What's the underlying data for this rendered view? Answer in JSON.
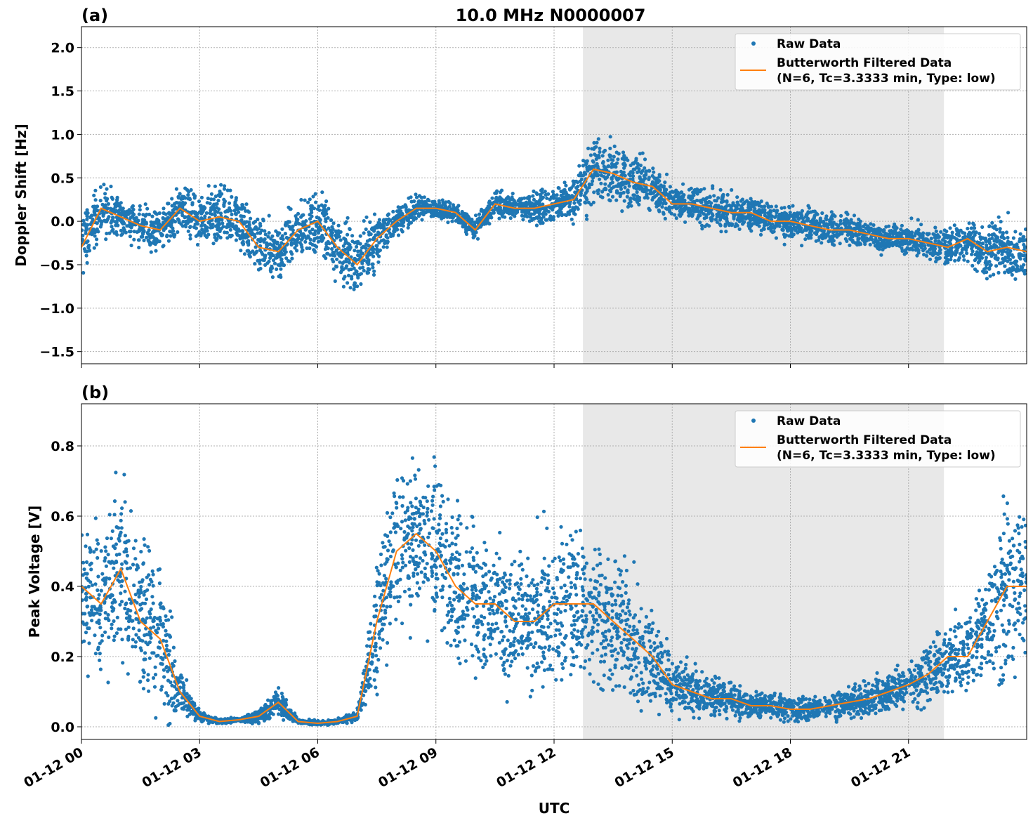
{
  "chart_data": [
    {
      "type": "scatter+line",
      "panel_label": "(a)",
      "title": "10.0 MHz N0000007",
      "ylabel": "Doppler Shift [Hz]",
      "xlabel": "",
      "ylim": [
        -1.64,
        2.24
      ],
      "yticks": [
        -1.5,
        -1.0,
        -0.5,
        0.0,
        0.5,
        1.0,
        1.5,
        2.0
      ],
      "grid": true,
      "legend": {
        "placement": "top-right",
        "entries": [
          "Raw Data",
          "Butterworth Filtered Data",
          "(N=6, Tc=3.3333 min, Type: low)"
        ]
      },
      "shaded_interval": [
        "12:44",
        "21:54"
      ],
      "times": [
        "00:00",
        "00:30",
        "01:00",
        "01:30",
        "02:00",
        "02:30",
        "03:00",
        "03:30",
        "04:00",
        "04:30",
        "05:00",
        "05:30",
        "06:00",
        "06:30",
        "07:00",
        "07:30",
        "08:00",
        "08:30",
        "09:00",
        "09:30",
        "10:00",
        "10:30",
        "11:00",
        "11:30",
        "12:00",
        "12:30",
        "13:00",
        "13:30",
        "14:00",
        "14:30",
        "15:00",
        "15:30",
        "16:00",
        "16:30",
        "17:00",
        "17:30",
        "18:00",
        "18:30",
        "19:00",
        "19:30",
        "20:00",
        "20:30",
        "21:00",
        "21:30",
        "22:00",
        "22:30",
        "23:00",
        "23:30",
        "24:00"
      ],
      "series": [
        {
          "name": "Butterworth Filtered Data",
          "color": "#ff7f0e",
          "values": [
            -0.3,
            0.15,
            0.05,
            -0.05,
            -0.1,
            0.15,
            0.0,
            0.05,
            0.0,
            -0.3,
            -0.35,
            -0.1,
            0.0,
            -0.3,
            -0.5,
            -0.2,
            0.0,
            0.15,
            0.15,
            0.1,
            -0.1,
            0.2,
            0.15,
            0.15,
            0.2,
            0.25,
            0.6,
            0.55,
            0.45,
            0.4,
            0.2,
            0.2,
            0.15,
            0.1,
            0.1,
            0.0,
            0.0,
            -0.05,
            -0.1,
            -0.1,
            -0.15,
            -0.2,
            -0.2,
            -0.25,
            -0.3,
            -0.2,
            -0.35,
            -0.3,
            -0.35
          ]
        },
        {
          "name": "Raw Data",
          "color": "#1f77b4",
          "spread": [
            0.45,
            0.45,
            0.3,
            0.35,
            0.3,
            0.35,
            0.4,
            0.5,
            0.5,
            0.45,
            0.45,
            0.45,
            0.55,
            0.6,
            0.6,
            0.4,
            0.25,
            0.2,
            0.15,
            0.15,
            0.2,
            0.2,
            0.2,
            0.25,
            0.3,
            0.4,
            0.6,
            0.5,
            0.45,
            0.4,
            0.3,
            0.3,
            0.3,
            0.3,
            0.25,
            0.25,
            0.3,
            0.25,
            0.25,
            0.25,
            0.25,
            0.25,
            0.25,
            0.25,
            0.3,
            0.35,
            0.45,
            0.45,
            0.4
          ]
        }
      ]
    },
    {
      "type": "scatter+line",
      "panel_label": "(b)",
      "title": "",
      "ylabel": "Peak Voltage [V]",
      "xlabel": "UTC",
      "ylim": [
        -0.036,
        0.92
      ],
      "yticks": [
        0.0,
        0.2,
        0.4,
        0.6,
        0.8
      ],
      "xticks": [
        "01-12 00",
        "01-12 03",
        "01-12 06",
        "01-12 09",
        "01-12 12",
        "01-12 15",
        "01-12 18",
        "01-12 21"
      ],
      "grid": true,
      "legend": {
        "placement": "top-right",
        "entries": [
          "Raw Data",
          "Butterworth Filtered Data",
          "(N=6, Tc=3.3333 min, Type: low)"
        ]
      },
      "shaded_interval": [
        "12:44",
        "21:54"
      ],
      "times": [
        "00:00",
        "00:30",
        "01:00",
        "01:30",
        "02:00",
        "02:30",
        "03:00",
        "03:30",
        "04:00",
        "04:30",
        "05:00",
        "05:30",
        "06:00",
        "06:30",
        "07:00",
        "07:30",
        "08:00",
        "08:30",
        "09:00",
        "09:30",
        "10:00",
        "10:30",
        "11:00",
        "11:30",
        "12:00",
        "12:30",
        "13:00",
        "13:30",
        "14:00",
        "14:30",
        "15:00",
        "15:30",
        "16:00",
        "16:30",
        "17:00",
        "17:30",
        "18:00",
        "18:30",
        "19:00",
        "19:30",
        "20:00",
        "20:30",
        "21:00",
        "21:30",
        "22:00",
        "22:30",
        "23:00",
        "23:30",
        "24:00"
      ],
      "series": [
        {
          "name": "Butterworth Filtered Data",
          "color": "#ff7f0e",
          "values": [
            0.4,
            0.35,
            0.45,
            0.3,
            0.25,
            0.1,
            0.03,
            0.015,
            0.02,
            0.03,
            0.07,
            0.015,
            0.01,
            0.015,
            0.03,
            0.3,
            0.5,
            0.55,
            0.5,
            0.4,
            0.35,
            0.35,
            0.3,
            0.3,
            0.35,
            0.35,
            0.35,
            0.3,
            0.25,
            0.2,
            0.12,
            0.1,
            0.08,
            0.08,
            0.06,
            0.06,
            0.05,
            0.05,
            0.06,
            0.07,
            0.08,
            0.1,
            0.12,
            0.15,
            0.2,
            0.2,
            0.3,
            0.4,
            0.4
          ]
        },
        {
          "name": "Raw Data",
          "color": "#1f77b4",
          "spread": [
            0.3,
            0.3,
            0.35,
            0.3,
            0.3,
            0.1,
            0.02,
            0.01,
            0.01,
            0.03,
            0.06,
            0.01,
            0.01,
            0.01,
            0.02,
            0.25,
            0.3,
            0.3,
            0.3,
            0.3,
            0.3,
            0.3,
            0.3,
            0.3,
            0.3,
            0.3,
            0.3,
            0.28,
            0.25,
            0.2,
            0.12,
            0.1,
            0.08,
            0.07,
            0.05,
            0.05,
            0.05,
            0.05,
            0.05,
            0.06,
            0.07,
            0.08,
            0.1,
            0.12,
            0.15,
            0.15,
            0.25,
            0.35,
            0.3
          ]
        }
      ]
    }
  ]
}
